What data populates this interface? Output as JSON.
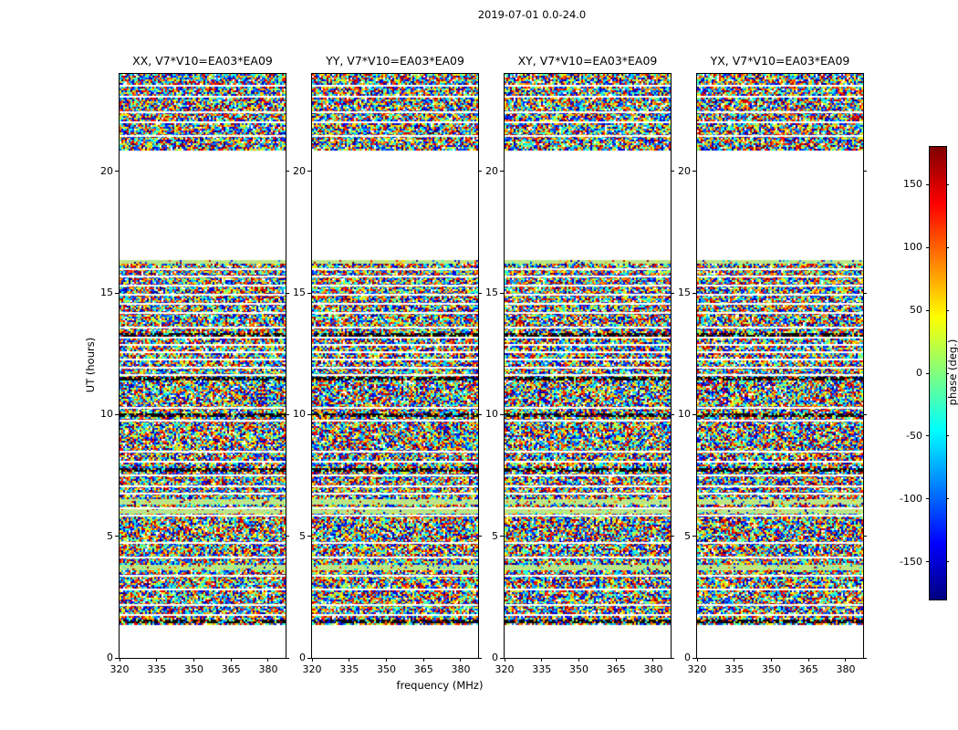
{
  "chart_data": {
    "type": "heatmap",
    "title": "2019-07-01 0.0-24.0",
    "subplot_titles": [
      "XX, V7*V10=EA03*EA09",
      "YY, V7*V10=EA03*EA09",
      "XY, V7*V10=EA03*EA09",
      "YX, V7*V10=EA03*EA09"
    ],
    "xlabel": "frequency (MHz)",
    "ylabel": "UT (hours)",
    "x_range_mhz": [
      320,
      387
    ],
    "y_range_hours": [
      0,
      24
    ],
    "x_ticks": [
      320,
      335,
      350,
      365,
      380
    ],
    "y_ticks": [
      0,
      5,
      10,
      15,
      20
    ],
    "colormap": "jet",
    "colorbar_label": "phase (deg.)",
    "colorbar_range_deg": [
      -180,
      180
    ],
    "colorbar_ticks": [
      150,
      100,
      50,
      0,
      -50,
      -100,
      -150
    ],
    "value_description": "interferometric visibility phase per frequency/time pixel; noise-like, uniformly distributed between -180 and +180 degrees; identical gap structure across all four polarization panels",
    "data_gaps_hours": [
      [
        16.38,
        20.85
      ],
      [
        0,
        1.35
      ]
    ],
    "flat_green_bands_hours": [
      [
        16.2,
        16.38
      ],
      [
        6.3,
        6.55
      ],
      [
        5.95,
        6.12
      ],
      [
        3.6,
        3.85
      ]
    ],
    "dark_rows_hours": [
      1.5,
      7.7,
      9.95,
      11.45,
      13.3
    ],
    "white_line_hours": [
      23.55,
      23.1,
      22.45,
      22.05,
      21.5,
      16.0,
      15.7,
      15.35,
      14.95,
      14.6,
      14.2,
      13.6,
      13.2,
      12.9,
      12.6,
      12.3,
      11.95,
      11.65,
      10.3,
      9.8,
      8.5,
      8.1,
      7.55,
      7.1,
      6.8,
      6.2,
      5.9,
      4.75,
      4.15,
      3.4,
      2.85,
      2.2,
      1.8
    ]
  }
}
